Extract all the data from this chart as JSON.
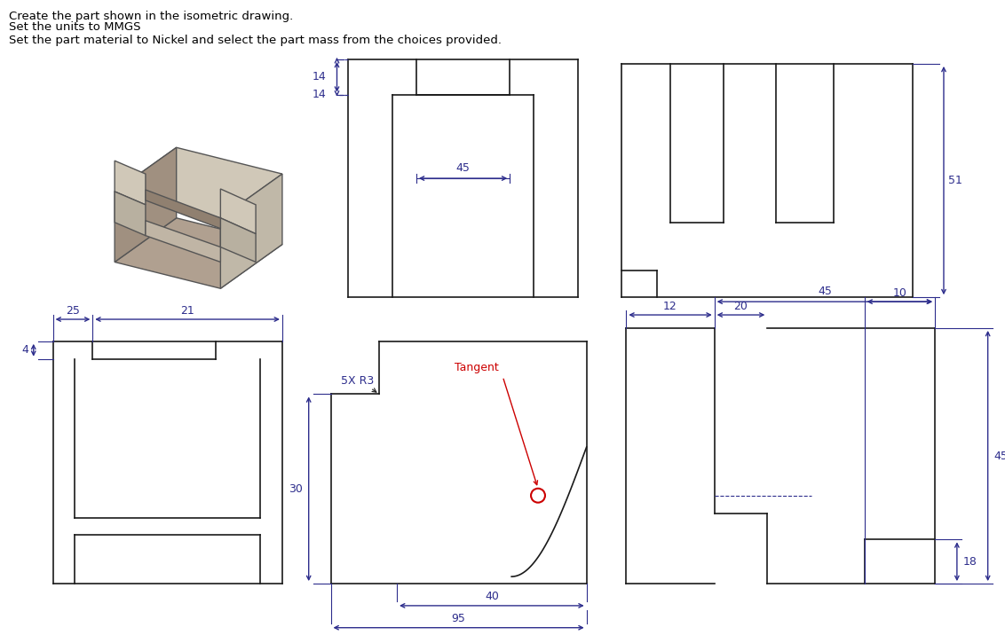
{
  "bg_color": "#ffffff",
  "line_color": "#2d2d8c",
  "line_color_dark": "#1a1a1a",
  "red_color": "#cc0000",
  "text_color_blue": "#2d2d8c",
  "text_color_red": "#cc0000",
  "title_lines": [
    "Create the part shown in the isometric drawing.",
    "Set the units to MMGS",
    "Set the part material to Nickel and select the part mass from the choices provided."
  ],
  "dim_arrow_color": "#2d2d8c"
}
